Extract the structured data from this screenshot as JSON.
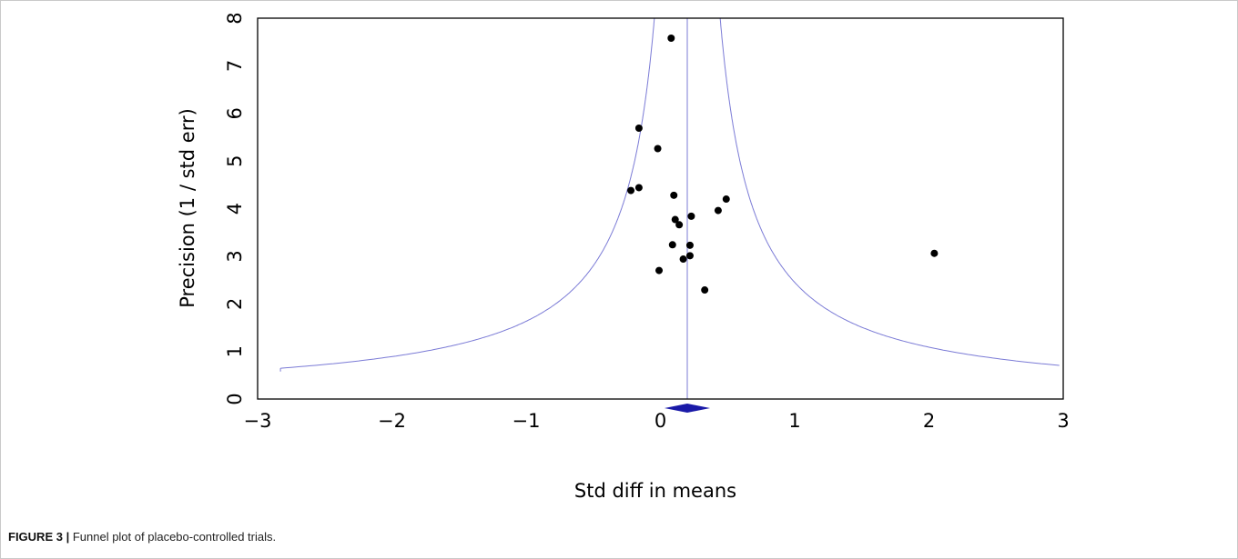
{
  "figure": {
    "label": "FIGURE 3 |",
    "caption": "Funnel plot of placebo-controlled trials."
  },
  "chart_data": {
    "type": "scatter",
    "subtype": "funnel",
    "xlabel": "Std diff in means",
    "ylabel": "Precision (1 / std err)",
    "xlim": [
      -3,
      3
    ],
    "ylim": [
      0,
      8
    ],
    "xticks": [
      -3,
      -2,
      -1,
      0,
      1,
      2,
      3
    ],
    "xtick_labels": [
      "−3",
      "−2",
      "−1",
      "0",
      "1",
      "2",
      "3"
    ],
    "yticks": [
      0,
      1,
      2,
      3,
      4,
      5,
      6,
      7,
      8
    ],
    "grid": false,
    "summary_effect": 0.2,
    "summary_ci": [
      0.03,
      0.37
    ],
    "funnel_multiplier": 1.96,
    "colors": {
      "funnel": "#7b7bd6",
      "points": "#000000",
      "diamond": "#1a1aa8",
      "axis": "#000000"
    },
    "points": [
      {
        "x": 0.08,
        "y": 7.58
      },
      {
        "x": -0.16,
        "y": 5.69
      },
      {
        "x": -0.02,
        "y": 5.26
      },
      {
        "x": -0.22,
        "y": 4.38
      },
      {
        "x": -0.16,
        "y": 4.44
      },
      {
        "x": 0.1,
        "y": 4.28
      },
      {
        "x": 0.49,
        "y": 4.2
      },
      {
        "x": 0.43,
        "y": 3.96
      },
      {
        "x": 0.23,
        "y": 3.84
      },
      {
        "x": 0.11,
        "y": 3.77
      },
      {
        "x": 0.14,
        "y": 3.66
      },
      {
        "x": 0.09,
        "y": 3.24
      },
      {
        "x": 0.22,
        "y": 3.23
      },
      {
        "x": 0.22,
        "y": 3.01
      },
      {
        "x": 0.17,
        "y": 2.94
      },
      {
        "x": -0.01,
        "y": 2.7
      },
      {
        "x": 0.33,
        "y": 2.29
      },
      {
        "x": 2.04,
        "y": 3.06
      }
    ]
  }
}
